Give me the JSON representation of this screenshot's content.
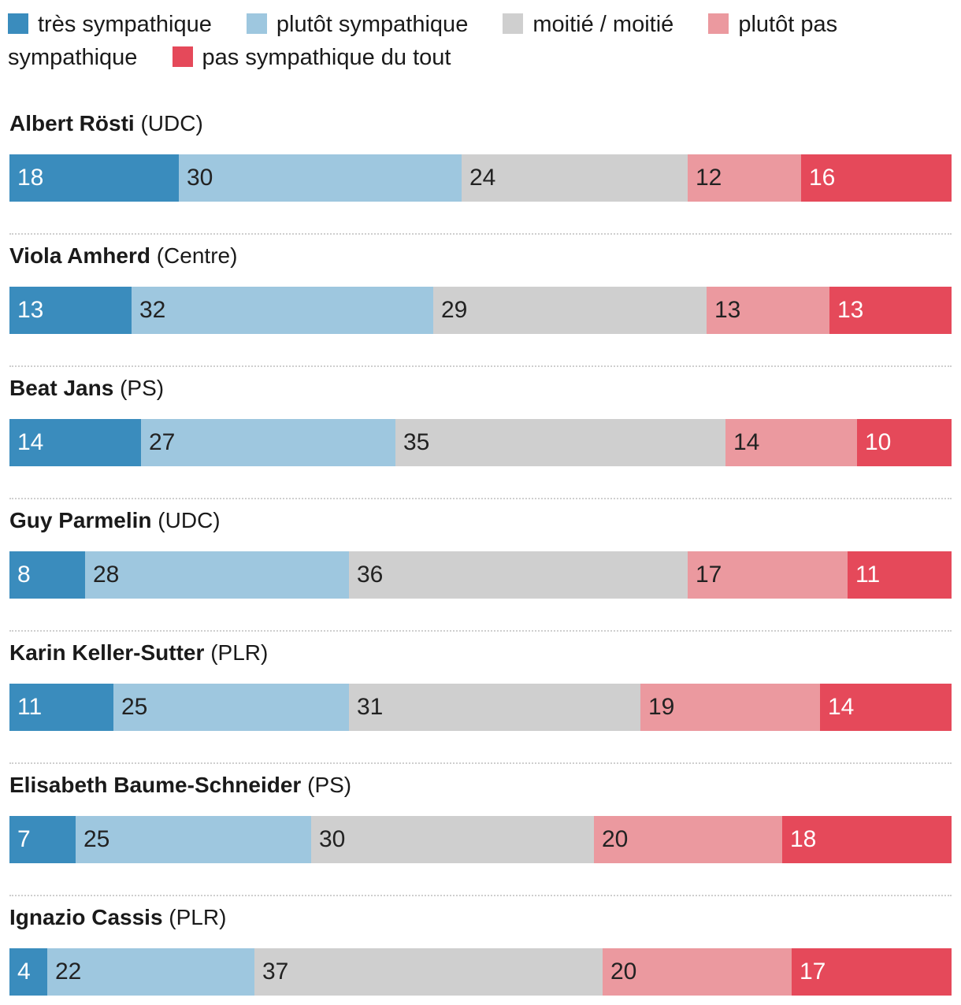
{
  "chart_data": {
    "type": "bar",
    "orientation": "horizontal-stacked-100",
    "categories": [
      {
        "name": "Albert Rösti",
        "party": "(UDC)"
      },
      {
        "name": "Viola Amherd",
        "party": "(Centre)"
      },
      {
        "name": "Beat Jans",
        "party": "(PS)"
      },
      {
        "name": "Guy Parmelin",
        "party": "(UDC)"
      },
      {
        "name": "Karin Keller-Sutter",
        "party": "(PLR)"
      },
      {
        "name": "Elisabeth Baume-Schneider",
        "party": "(PS)"
      },
      {
        "name": "Ignazio Cassis",
        "party": "(PLR)"
      }
    ],
    "series": [
      {
        "name": "très sympathique",
        "color": "#3a8cbd",
        "label_color": "#ffffff",
        "values": [
          18,
          13,
          14,
          8,
          11,
          7,
          4
        ]
      },
      {
        "name": "plutôt sympathique",
        "color": "#9ec7df",
        "label_color": "#222222",
        "values": [
          30,
          32,
          27,
          28,
          25,
          25,
          22
        ]
      },
      {
        "name": "moitié / moitié",
        "color": "#cfcfcf",
        "label_color": "#222222",
        "values": [
          24,
          29,
          35,
          36,
          31,
          30,
          37
        ]
      },
      {
        "name": "plutôt pas sympathique",
        "color": "#eb999f",
        "label_color": "#222222",
        "values": [
          12,
          13,
          14,
          17,
          19,
          20,
          20
        ]
      },
      {
        "name": "pas sympathique du tout",
        "color": "#e5495a",
        "label_color": "#ffffff",
        "values": [
          16,
          13,
          10,
          11,
          14,
          18,
          17
        ]
      }
    ],
    "xlim": [
      0,
      100
    ],
    "legend_position": "top",
    "grid": false
  }
}
